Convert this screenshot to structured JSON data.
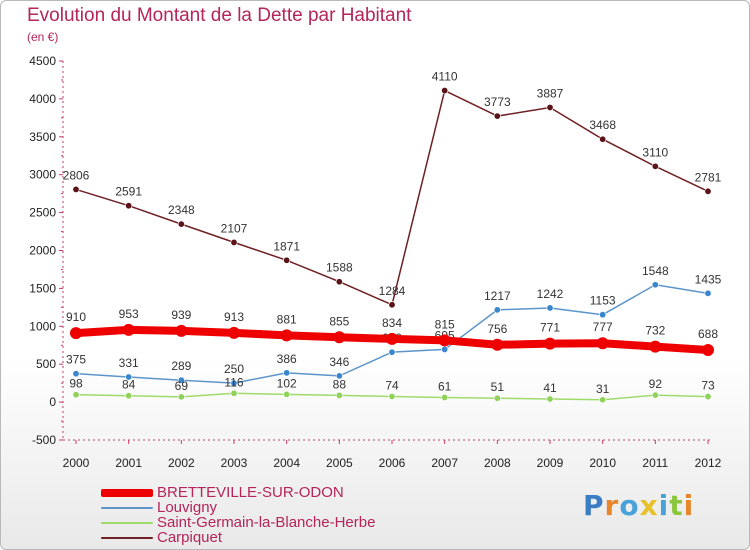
{
  "header": {
    "title": "Evolution du Montant de la Dette par Habitant",
    "unit": "(en €)"
  },
  "logo": {
    "text": "Proxiti",
    "letters": [
      {
        "ch": "P",
        "color": "#3a7dc4"
      },
      {
        "ch": "r",
        "color": "#e8872a"
      },
      {
        "ch": "o",
        "color": "#4aa3d8"
      },
      {
        "ch": "x",
        "color": "#e8c22a"
      },
      {
        "ch": "i",
        "color": "#4aa3d8"
      },
      {
        "ch": "t",
        "color": "#8cc63f"
      },
      {
        "ch": "i",
        "color": "#e8872a"
      }
    ]
  },
  "chart_data": {
    "type": "line",
    "categories": [
      "2000",
      "2001",
      "2002",
      "2003",
      "2004",
      "2005",
      "2006",
      "2007",
      "2008",
      "2009",
      "2010",
      "2011",
      "2012"
    ],
    "ylim": [
      -500,
      4500
    ],
    "yticks": [
      -500,
      0,
      500,
      1000,
      1500,
      2000,
      2500,
      3000,
      3500,
      4000,
      4500
    ],
    "grid": false,
    "legend_position": "bottom-left",
    "series": [
      {
        "name": "Carpiquet",
        "color": "#6f2024",
        "marker": "#5a1418",
        "values": [
          2806,
          2591,
          2348,
          2107,
          1871,
          1588,
          1284,
          4110,
          3773,
          3887,
          3468,
          3110,
          2781
        ]
      },
      {
        "name": "Louvigny",
        "color": "#5b95c9",
        "marker": "#3a86cc",
        "values": [
          375,
          331,
          289,
          250,
          386,
          346,
          659,
          695,
          1217,
          1242,
          1153,
          1548,
          1435
        ]
      },
      {
        "name": "Saint-Germain-la-Blanche-Herbe",
        "color": "#9fdb6b",
        "marker": "#8fd15a",
        "values": [
          98,
          84,
          69,
          116,
          102,
          88,
          74,
          61,
          51,
          41,
          31,
          92,
          73
        ]
      },
      {
        "name": "BRETTEVILLE-SUR-ODON",
        "color": "#ee0000",
        "marker": "#ee0000",
        "values": [
          910,
          953,
          939,
          913,
          881,
          855,
          834,
          815,
          756,
          771,
          777,
          732,
          688
        ]
      }
    ],
    "legend": [
      "BRETTEVILLE-SUR-ODON",
      "Louvigny",
      "Saint-Germain-la-Blanche-Herbe",
      "Carpiquet"
    ]
  }
}
